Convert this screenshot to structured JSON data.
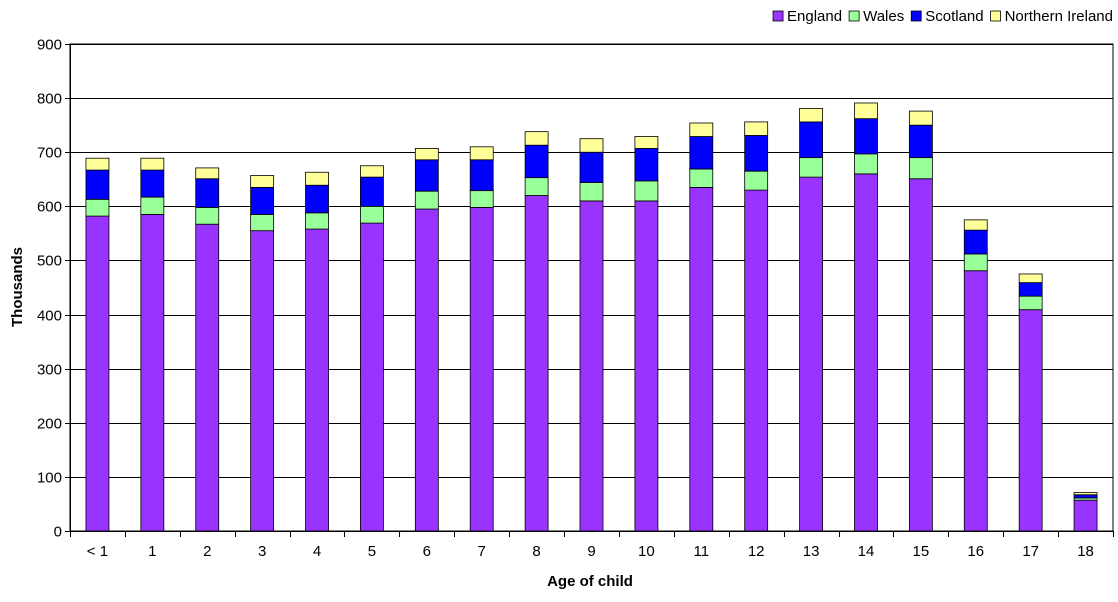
{
  "chart_data": {
    "type": "bar",
    "stacked": true,
    "categories": [
      "< 1",
      "1",
      "2",
      "3",
      "4",
      "5",
      "6",
      "7",
      "8",
      "9",
      "10",
      "11",
      "12",
      "13",
      "14",
      "15",
      "16",
      "17",
      "18"
    ],
    "series": [
      {
        "name": "England",
        "color": "#9933FF",
        "values": [
          582,
          585,
          567,
          555,
          558,
          569,
          595,
          598,
          620,
          610,
          610,
          635,
          630,
          654,
          660,
          651,
          481,
          409,
          57
        ]
      },
      {
        "name": "Wales",
        "color": "#99FF99",
        "values": [
          31,
          32,
          31,
          30,
          30,
          31,
          33,
          31,
          33,
          34,
          37,
          34,
          35,
          36,
          37,
          39,
          31,
          25,
          4
        ]
      },
      {
        "name": "Scotland",
        "color": "#0000FF",
        "values": [
          54,
          50,
          53,
          50,
          51,
          54,
          58,
          57,
          60,
          56,
          60,
          60,
          66,
          66,
          65,
          60,
          44,
          25,
          6
        ]
      },
      {
        "name": "Northern Ireland",
        "color": "#FFFF99",
        "values": [
          22,
          22,
          20,
          22,
          24,
          21,
          21,
          24,
          25,
          25,
          22,
          25,
          25,
          25,
          29,
          26,
          19,
          16,
          4
        ]
      }
    ],
    "title": "",
    "xlabel": "Age of child",
    "ylabel": "Thousands",
    "ylim": [
      0,
      900
    ],
    "yticks": [
      0,
      100,
      200,
      300,
      400,
      500,
      600,
      700,
      800,
      900
    ],
    "grid": true,
    "legend_position": "top-right"
  }
}
